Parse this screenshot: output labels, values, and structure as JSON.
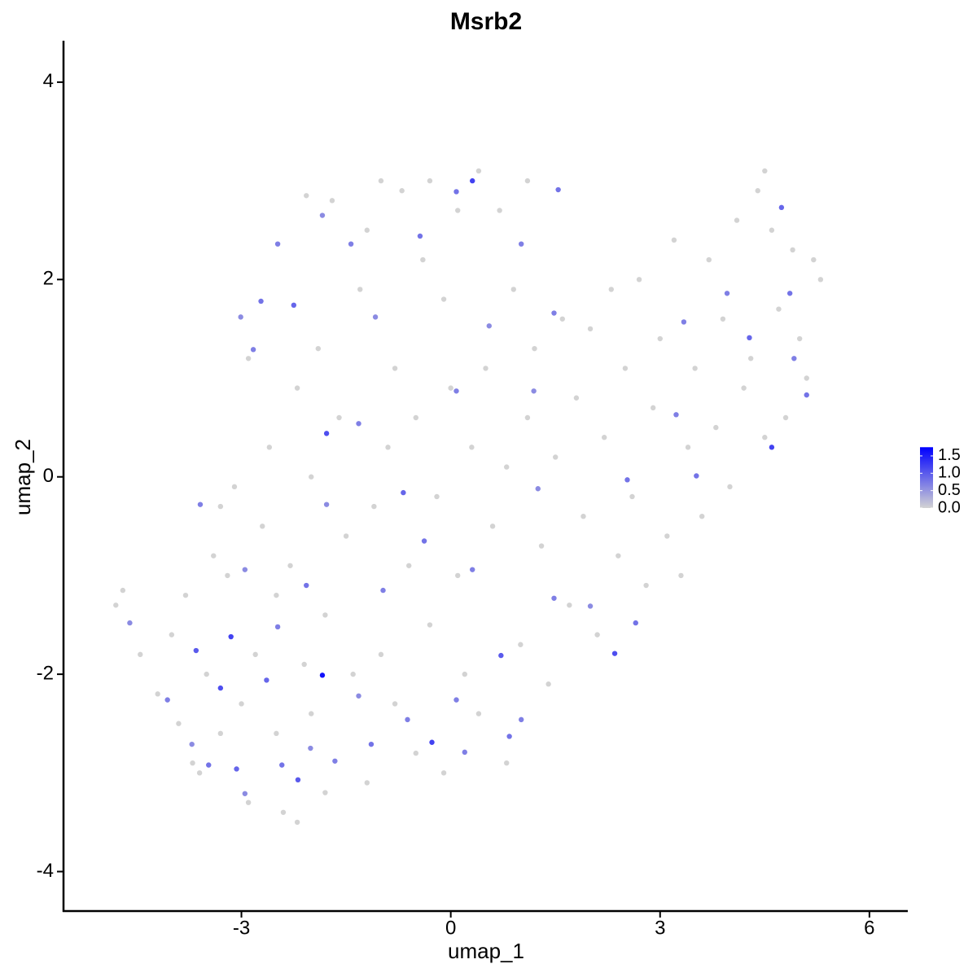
{
  "chart_data": {
    "type": "scatter",
    "title": "Msrb2",
    "x_label": "umap_1",
    "y_label": "umap_2",
    "xlim": [
      -5.55,
      6.55
    ],
    "xticks": [
      -3,
      0,
      3,
      6
    ],
    "ylim": [
      -4.4,
      4.42
    ],
    "yticks": [
      -4,
      -2,
      0,
      2,
      4
    ],
    "x": [
      -4.8,
      -4.7,
      -4.45,
      -4.2,
      -4.0,
      -3.9,
      -3.8,
      -3.7,
      -3.6,
      -3.5,
      -3.4,
      -3.3,
      -3.2,
      -3.1,
      -3.0,
      -2.9,
      -2.8,
      -2.7,
      -2.6,
      -2.5,
      -2.5,
      -2.4,
      -2.3,
      -2.2,
      -2.2,
      -2.1,
      -2.0,
      -2.0,
      -1.9,
      -1.8,
      -1.8,
      -1.7,
      -1.6,
      -1.5,
      -1.4,
      -1.3,
      -1.2,
      -1.2,
      -1.1,
      -1.0,
      -1.0,
      -0.9,
      -0.8,
      -0.8,
      -0.7,
      -0.6,
      -0.5,
      -0.5,
      -0.4,
      -0.3,
      -0.3,
      -0.2,
      -0.1,
      -0.1,
      0.0,
      0.1,
      0.1,
      0.2,
      0.3,
      0.4,
      0.4,
      0.5,
      0.6,
      0.7,
      0.8,
      0.8,
      0.9,
      1.0,
      1.1,
      1.2,
      1.3,
      1.4,
      1.5,
      1.6,
      1.7,
      1.8,
      1.9,
      2.0,
      2.1,
      2.2,
      2.3,
      2.4,
      2.5,
      2.6,
      2.7,
      2.8,
      2.9,
      3.0,
      3.1,
      3.2,
      3.3,
      3.4,
      3.5,
      3.6,
      3.7,
      3.8,
      3.9,
      4.0,
      4.1,
      4.2,
      4.3,
      4.4,
      4.5,
      4.6,
      4.7,
      4.8,
      4.9,
      5.0,
      5.1,
      5.2,
      5.3,
      4.5,
      1.1,
      -3.3,
      -2.9,
      -2.07,
      0.31,
      -1.78,
      -1.84,
      -3.15,
      -3.3,
      2.35,
      4.6,
      -0.27,
      0.72,
      -2.19,
      1.54,
      -0.44,
      -3.59,
      -4.6,
      4.74,
      4.86,
      3.52,
      4.28,
      3.34,
      -0.68,
      -1.32,
      -2.72,
      -2.25,
      -2.48,
      -1.08,
      -2.83,
      0.55,
      1.48,
      1.25,
      2.53,
      -0.38,
      -0.97,
      0.31,
      -2.07,
      -2.95,
      -2.48,
      -3.65,
      -3.47,
      -3.07,
      -2.42,
      -1.66,
      -1.14,
      0.2,
      0.84,
      1.01,
      -0.62,
      -1.32,
      0.08,
      1.48,
      2.0,
      2.65,
      3.23,
      5.1,
      4.92,
      3.96,
      1.01,
      0.08,
      -1.43,
      -1.84,
      -3.01,
      0.08,
      1.19,
      -1.78,
      -2.64,
      -2.01,
      -4.06,
      -3.71,
      -2.95
    ],
    "y": [
      -1.3,
      -1.15,
      -1.8,
      -2.2,
      -1.6,
      -2.5,
      -1.2,
      -2.9,
      -3.0,
      -2.0,
      -0.8,
      -2.6,
      -1.0,
      -0.1,
      -2.3,
      -3.3,
      -1.8,
      -0.5,
      0.3,
      -1.2,
      -2.6,
      -3.4,
      -0.9,
      0.9,
      -3.5,
      -1.9,
      -2.4,
      0.0,
      1.3,
      -3.2,
      -1.4,
      2.8,
      0.6,
      -0.6,
      -2.0,
      1.9,
      -3.1,
      2.5,
      -0.3,
      3.0,
      -1.8,
      0.3,
      -2.3,
      1.1,
      2.9,
      -0.9,
      -2.8,
      0.6,
      2.2,
      -1.5,
      3.0,
      -0.2,
      1.8,
      -3.0,
      0.9,
      -1.0,
      2.7,
      -2.0,
      0.3,
      3.1,
      -2.4,
      1.1,
      -0.5,
      2.7,
      -2.9,
      0.1,
      1.9,
      -1.7,
      0.6,
      1.3,
      -0.7,
      -2.1,
      0.2,
      1.6,
      -1.3,
      0.8,
      -0.4,
      1.5,
      -1.6,
      0.4,
      1.9,
      -0.8,
      1.1,
      -0.2,
      2.0,
      -1.1,
      0.7,
      1.4,
      -0.6,
      2.4,
      -1.0,
      0.3,
      1.1,
      -0.4,
      2.2,
      0.5,
      1.6,
      -0.1,
      2.6,
      0.9,
      1.2,
      2.9,
      0.4,
      2.5,
      1.7,
      0.6,
      2.3,
      1.4,
      1.0,
      2.2,
      2.0,
      3.1,
      3.0,
      -0.3,
      1.2,
      2.85,
      3.0,
      0.44,
      -2.01,
      -1.62,
      -2.14,
      -1.79,
      0.3,
      -2.69,
      -1.81,
      -3.07,
      2.91,
      2.44,
      -0.28,
      -1.48,
      2.73,
      1.86,
      0.01,
      1.41,
      1.57,
      -0.16,
      0.54,
      1.78,
      1.74,
      2.36,
      1.62,
      1.29,
      1.53,
      1.66,
      -0.12,
      -0.03,
      -0.65,
      -1.15,
      -0.94,
      -1.1,
      -0.94,
      -1.52,
      -1.76,
      -2.92,
      -2.96,
      -2.92,
      -2.88,
      -2.71,
      -2.79,
      -2.63,
      -2.46,
      -2.46,
      -2.22,
      -2.26,
      -1.23,
      -1.31,
      -1.48,
      0.63,
      0.83,
      1.2,
      1.86,
      2.36,
      2.89,
      2.36,
      2.65,
      1.62,
      0.87,
      0.87,
      -0.28,
      -2.06,
      -2.75,
      -2.26,
      -2.71,
      -3.21
    ],
    "values": [
      0,
      0,
      0,
      0,
      0,
      0,
      0,
      0,
      0,
      0,
      0,
      0,
      0,
      0,
      0,
      0,
      0,
      0,
      0,
      0,
      0,
      0,
      0,
      0,
      0,
      0,
      0,
      0,
      0,
      0,
      0,
      0,
      0,
      0,
      0,
      0,
      0,
      0,
      0,
      0,
      0,
      0,
      0,
      0,
      0,
      0,
      0,
      0,
      0,
      0,
      0,
      0,
      0,
      0,
      0,
      0,
      0,
      0,
      0,
      0,
      0,
      0,
      0,
      0,
      0,
      0,
      0,
      0,
      0,
      0,
      0,
      0,
      0,
      0,
      0,
      0,
      0,
      0,
      0,
      0,
      0,
      0,
      0,
      0,
      0,
      0,
      0,
      0,
      0,
      0,
      0,
      0,
      0,
      0,
      0,
      0,
      0,
      0,
      0,
      0,
      0,
      0,
      0,
      0,
      0,
      0,
      0,
      0,
      0,
      0,
      0,
      0,
      0,
      0,
      0,
      0,
      1.2,
      1.1,
      1.6,
      1.2,
      1.1,
      1.1,
      1.2,
      1.2,
      1.0,
      1.0,
      0.8,
      0.8,
      0.7,
      0.6,
      0.9,
      0.8,
      0.8,
      0.9,
      0.7,
      0.9,
      0.7,
      0.8,
      0.9,
      0.7,
      0.6,
      0.7,
      0.6,
      0.7,
      0.6,
      0.8,
      0.8,
      0.7,
      0.7,
      0.8,
      0.6,
      0.7,
      1.0,
      0.8,
      0.9,
      0.8,
      0.7,
      0.8,
      0.7,
      0.8,
      0.7,
      0.7,
      0.6,
      0.7,
      0.7,
      0.6,
      0.8,
      0.7,
      0.8,
      0.7,
      0.7,
      0.7,
      0.8,
      0.7,
      0.6,
      0.6,
      0.7,
      0.6,
      0.6,
      0.9,
      0.6,
      0.7,
      0.6,
      0.6
    ],
    "colorbar": {
      "lim": [
        0,
        1.75
      ],
      "low": "#d3d3d3",
      "high": "#0000ff",
      "ticks": [
        {
          "value": 0,
          "label": "0.0"
        },
        0.5,
        {
          "value": 1,
          "label": "1.0"
        },
        1.5
      ]
    }
  }
}
